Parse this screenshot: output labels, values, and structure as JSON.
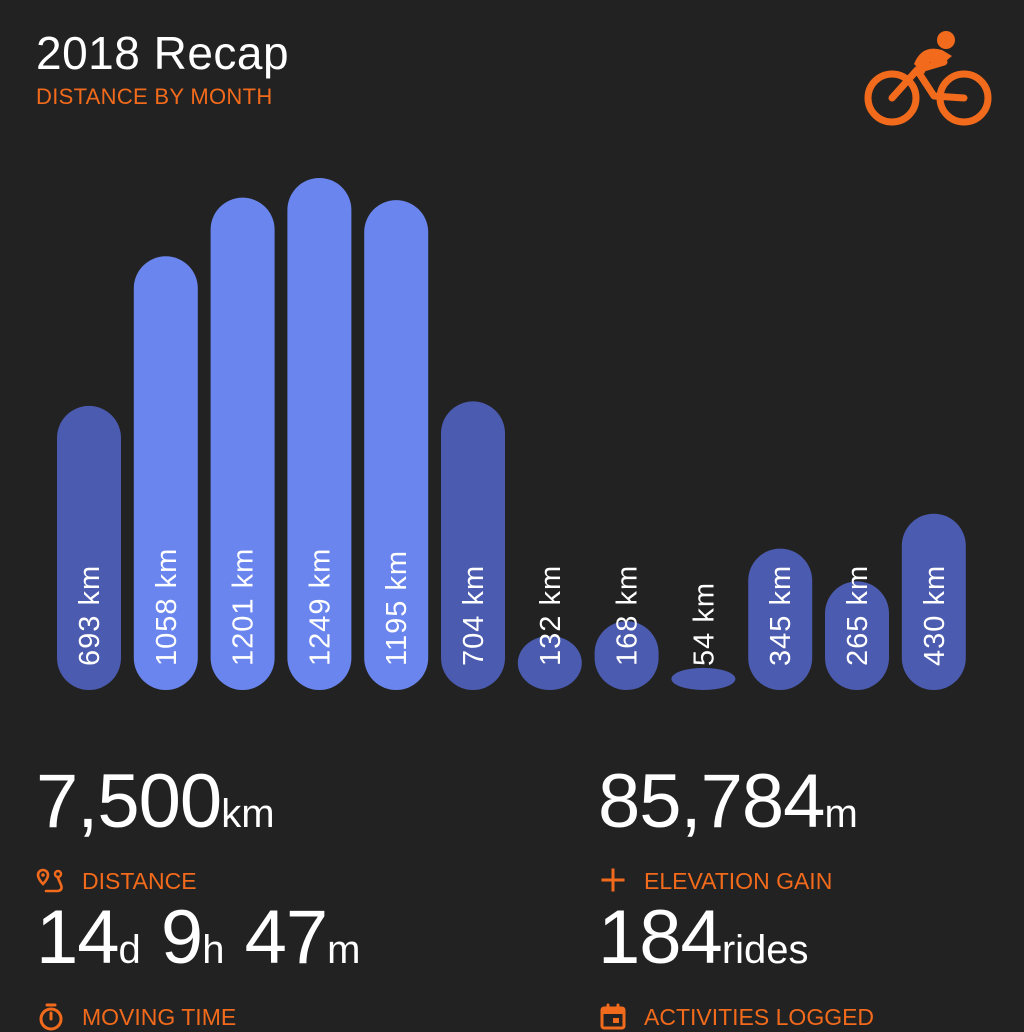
{
  "header": {
    "title": "2018 Recap",
    "subtitle": "DISTANCE BY MONTH"
  },
  "icons": {
    "logo": "cyclist-icon"
  },
  "colors": {
    "accent": "#f26a1b",
    "background": "#222222",
    "bar_light": "#6a86ee",
    "bar_dark": "#4b5baf"
  },
  "chart_data": {
    "type": "bar",
    "title": "DISTANCE BY MONTH",
    "values": [
      693,
      1058,
      1201,
      1249,
      1195,
      704,
      132,
      168,
      54,
      345,
      265,
      430
    ],
    "value_labels": [
      "693 km",
      "1058 km",
      "1201 km",
      "1249 km",
      "1195 km",
      "704 km",
      "132 km",
      "168 km",
      "54 km",
      "345 km",
      "265 km",
      "430 km"
    ],
    "unit": "km",
    "grid": false,
    "legend": "none"
  },
  "stats": {
    "distance": {
      "value": "7,500",
      "unit": "km",
      "label": "DISTANCE",
      "icon": "route-pin-icon"
    },
    "elevation": {
      "value": "85,784",
      "unit": "m",
      "label": "ELEVATION GAIN",
      "icon": "plus-icon"
    },
    "moving_time": {
      "d": "14",
      "d_unit": "d",
      "h": "9",
      "h_unit": "h",
      "m": "47",
      "m_unit": "m",
      "label": "MOVING TIME",
      "icon": "stopwatch-icon"
    },
    "activities": {
      "value": "184",
      "unit": "rides",
      "label": "ACTIVITIES LOGGED",
      "icon": "calendar-icon"
    }
  }
}
